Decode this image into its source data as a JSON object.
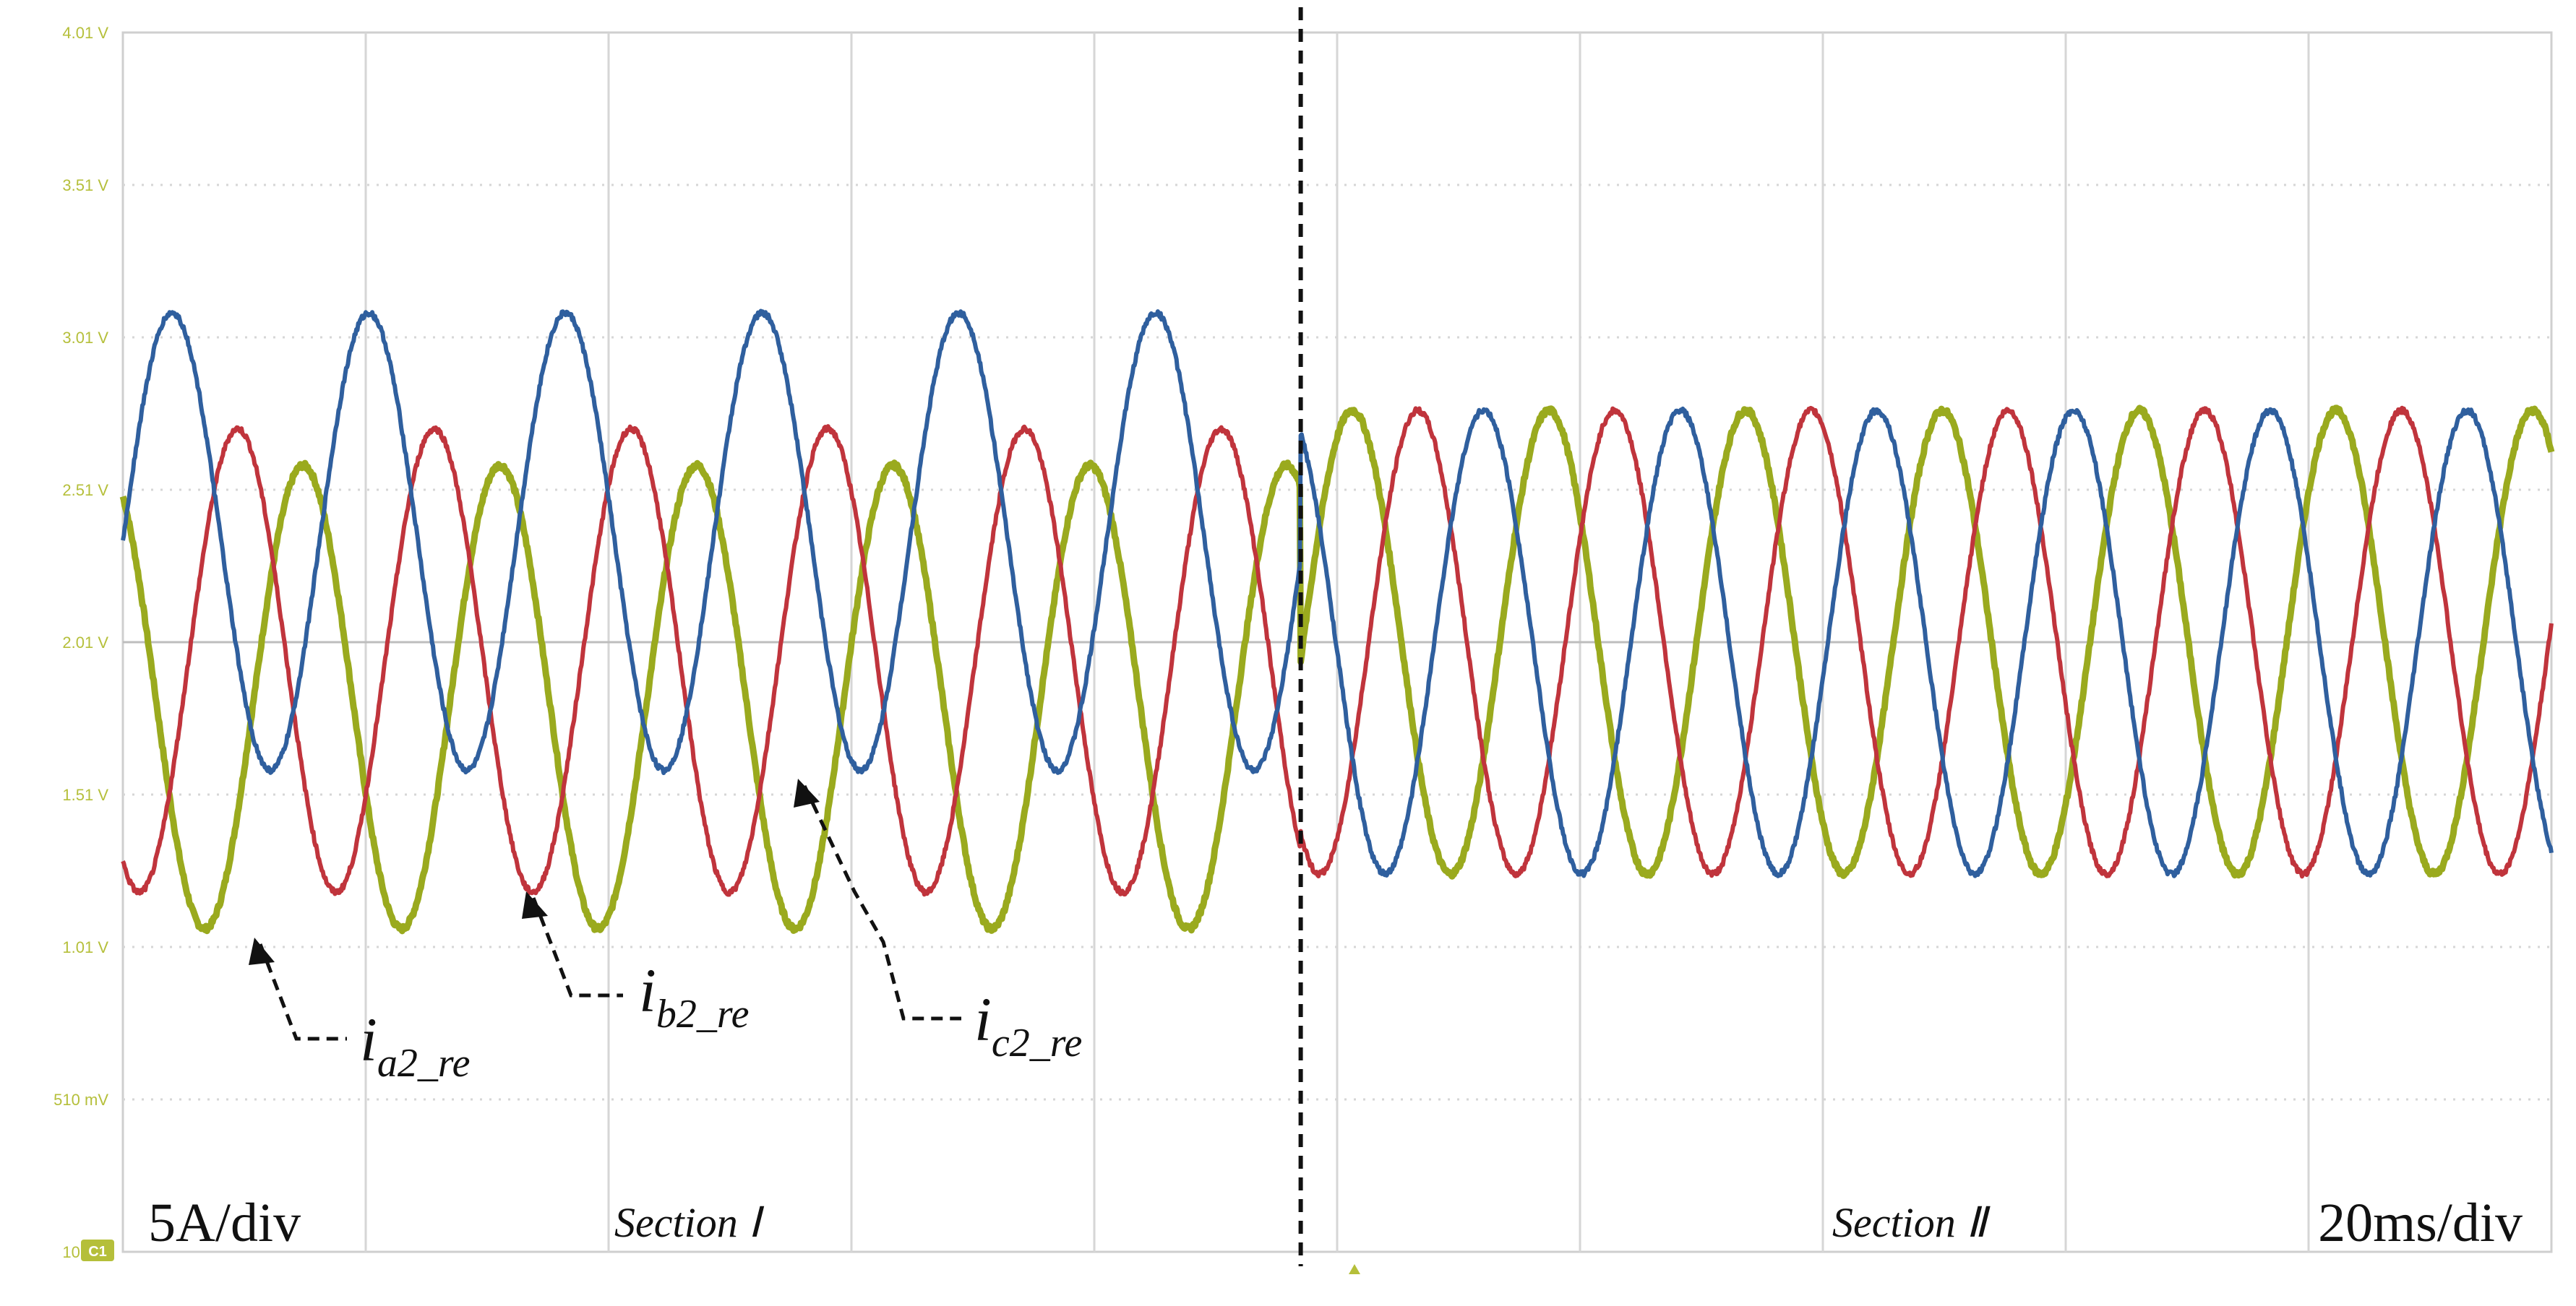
{
  "chart_data": {
    "type": "line",
    "y_ticks": [
      "4.01 V",
      "3.51 V",
      "3.01 V",
      "2.51 V",
      "2.01 V",
      "1.51 V",
      "1.01 V",
      "510 mV",
      "10 mV"
    ],
    "y_tick_values": [
      4.01,
      3.51,
      3.01,
      2.51,
      2.01,
      1.51,
      1.01,
      0.51,
      0.01
    ],
    "ylim": [
      0.01,
      4.01
    ],
    "xlim": [
      0,
      200
    ],
    "x_unit": "ms",
    "boundary_ms": 97,
    "channel_marker": "C1",
    "grid": true,
    "annotations": {
      "scale_current": "5A/div",
      "scale_time": "20ms/div",
      "section_1": "Section  Ⅰ",
      "section_2": "Section  Ⅱ"
    },
    "series": [
      {
        "name_main": "i",
        "name_sub": "a2_re",
        "color": "#9aaa1e",
        "section1": {
          "offset_V": 1.83,
          "amplitude_V": 0.76,
          "period_ms": 16.2,
          "phase_deg": 120
        },
        "section2": {
          "offset_V": 2.01,
          "amplitude_V": 0.76,
          "period_ms": 16.2,
          "phase_deg": 0
        }
      },
      {
        "name_main": "i",
        "name_sub": "b2_re",
        "color": "#c0343c",
        "section1": {
          "offset_V": 1.95,
          "amplitude_V": 0.76,
          "period_ms": 16.2,
          "phase_deg": -120
        },
        "section2": {
          "offset_V": 2.01,
          "amplitude_V": 0.76,
          "period_ms": 16.2,
          "phase_deg": -120
        }
      },
      {
        "name_main": "i",
        "name_sub": "c2_re",
        "color": "#2f5f9e",
        "section1": {
          "offset_V": 2.34,
          "amplitude_V": 0.75,
          "period_ms": 16.2,
          "phase_deg": 0
        },
        "section2": {
          "offset_V": 2.01,
          "amplitude_V": 0.76,
          "period_ms": 16.2,
          "phase_deg": 120
        }
      }
    ]
  }
}
